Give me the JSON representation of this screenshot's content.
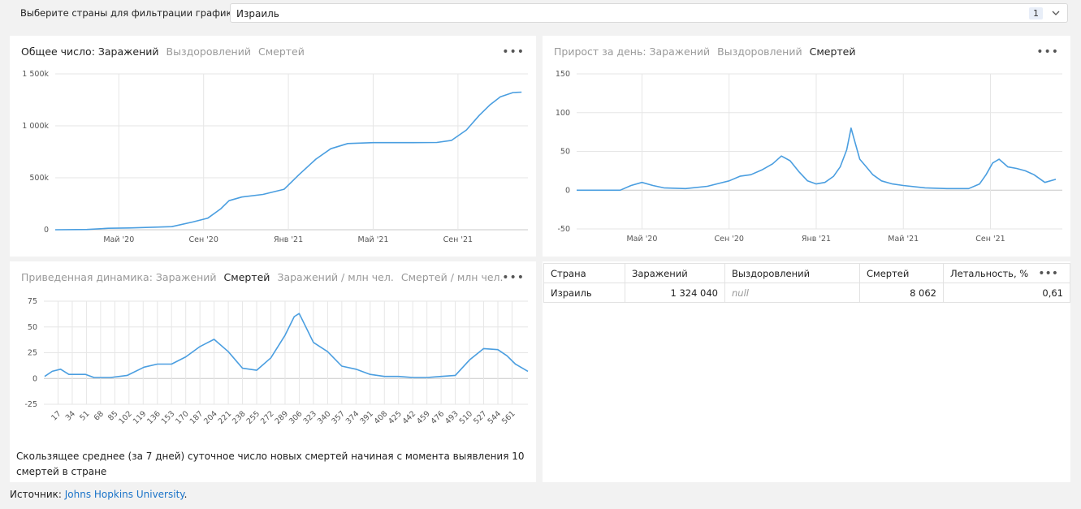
{
  "filter": {
    "label": "Выберите страны для фильтрации графиков:",
    "value": "Израиль",
    "count": "1"
  },
  "panel_total": {
    "tabs": [
      {
        "label": "Общее число: Заражений",
        "active": true
      },
      {
        "label": "Выздоровлений",
        "active": false
      },
      {
        "label": "Смертей",
        "active": false
      }
    ],
    "more": "•••"
  },
  "panel_daily": {
    "tabs": [
      {
        "label": "Прирост за день: Заражений",
        "active": false
      },
      {
        "label": "Выздоровлений",
        "active": false
      },
      {
        "label": "Смертей",
        "active": true
      }
    ],
    "more": "•••"
  },
  "panel_normalized": {
    "tabs": [
      {
        "label": "Приведенная динамика: Заражений",
        "active": false
      },
      {
        "label": "Смертей",
        "active": true
      },
      {
        "label": "Заражений / млн чел.",
        "active": false
      },
      {
        "label": "Смертей / млн чел.",
        "active": false
      }
    ],
    "more": "•••",
    "caption": "Скользящее среднее (за 7 дней) суточное число новых смертей начиная с момента выявления 10 смертей в стране"
  },
  "table": {
    "headers": [
      "Страна",
      "Заражений",
      "Выздоровлений",
      "Смертей",
      "Летальность, %"
    ],
    "more": "•••",
    "rows": [
      {
        "country": "Израиль",
        "cases": "1 324 040",
        "recovered": "null",
        "deaths": "8 062",
        "lethality": "0,61"
      }
    ]
  },
  "source": {
    "prefix": "Источник: ",
    "link": "Johns Hopkins University",
    "suffix": "."
  },
  "colors": {
    "line": "#4a9ee0",
    "grid": "#e6e6e6",
    "active_tab": "#222222",
    "inactive_tab": "#999999"
  },
  "chart_data": [
    {
      "type": "line",
      "title": "Общее число: Заражений",
      "x_ticks": [
        "Май '20",
        "Сен '20",
        "Янв '21",
        "Май '21",
        "Сен '21"
      ],
      "y_ticks": [
        "0",
        "500k",
        "1 000k",
        "1 500k"
      ],
      "ylim": [
        0,
        1500000
      ],
      "grid": true,
      "x_unit": "month index (0 = Feb 2020)",
      "series": [
        {
          "points": [
            [
              0,
              0
            ],
            [
              1.5,
              2000
            ],
            [
              2.5,
              14000
            ],
            [
              3.5,
              17000
            ],
            [
              5.5,
              30000
            ],
            [
              6.5,
              75000
            ],
            [
              7.2,
              112000
            ],
            [
              7.8,
              200000
            ],
            [
              8.2,
              280000
            ],
            [
              8.8,
              315000
            ],
            [
              9.8,
              340000
            ],
            [
              10.8,
              390000
            ],
            [
              11.5,
              530000
            ],
            [
              12.3,
              680000
            ],
            [
              13,
              780000
            ],
            [
              13.8,
              830000
            ],
            [
              15,
              838000
            ],
            [
              16.5,
              838000
            ],
            [
              18,
              840000
            ],
            [
              18.7,
              860000
            ],
            [
              19.4,
              960000
            ],
            [
              20,
              1100000
            ],
            [
              20.5,
              1200000
            ],
            [
              21,
              1280000
            ],
            [
              21.6,
              1320000
            ],
            [
              22,
              1324040
            ]
          ]
        }
      ]
    },
    {
      "type": "line",
      "title": "Прирост за день: Смертей",
      "x_ticks": [
        "Май '20",
        "Сен '20",
        "Янв '21",
        "Май '21",
        "Сен '21"
      ],
      "y_ticks": [
        "-50",
        "0",
        "50",
        "100",
        "150"
      ],
      "ylim": [
        -50,
        150
      ],
      "grid": true,
      "x_unit": "month index (0 = Feb 2020)",
      "series": [
        {
          "points": [
            [
              0,
              0
            ],
            [
              2,
              0
            ],
            [
              2.5,
              6
            ],
            [
              3,
              10
            ],
            [
              3.5,
              6
            ],
            [
              4,
              3
            ],
            [
              5,
              2
            ],
            [
              6,
              5
            ],
            [
              7,
              12
            ],
            [
              7.5,
              18
            ],
            [
              8,
              20
            ],
            [
              8.5,
              26
            ],
            [
              9,
              34
            ],
            [
              9.4,
              44
            ],
            [
              9.8,
              38
            ],
            [
              10.2,
              24
            ],
            [
              10.6,
              12
            ],
            [
              11,
              8
            ],
            [
              11.4,
              10
            ],
            [
              11.8,
              18
            ],
            [
              12.1,
              30
            ],
            [
              12.4,
              52
            ],
            [
              12.6,
              80
            ],
            [
              12.8,
              60
            ],
            [
              13,
              40
            ],
            [
              13.3,
              30
            ],
            [
              13.6,
              20
            ],
            [
              14,
              12
            ],
            [
              14.5,
              8
            ],
            [
              15,
              6
            ],
            [
              16,
              3
            ],
            [
              17,
              2
            ],
            [
              18,
              2
            ],
            [
              18.5,
              8
            ],
            [
              18.8,
              20
            ],
            [
              19.1,
              35
            ],
            [
              19.4,
              40
            ],
            [
              19.8,
              30
            ],
            [
              20.2,
              28
            ],
            [
              20.6,
              25
            ],
            [
              21,
              20
            ],
            [
              21.5,
              10
            ],
            [
              22,
              14
            ]
          ]
        }
      ]
    },
    {
      "type": "line",
      "title": "Приведенная динамика: Смертей",
      "x_ticks": [
        "17",
        "34",
        "51",
        "68",
        "85",
        "102",
        "119",
        "136",
        "153",
        "170",
        "187",
        "204",
        "221",
        "238",
        "255",
        "272",
        "289",
        "306",
        "323",
        "340",
        "357",
        "374",
        "391",
        "408",
        "425",
        "442",
        "459",
        "476",
        "493",
        "510",
        "527",
        "544",
        "561"
      ],
      "y_ticks": [
        "-25",
        "0",
        "25",
        "50",
        "75"
      ],
      "ylim": [
        -25,
        75
      ],
      "grid": true,
      "series": [
        {
          "points": [
            [
              1,
              2
            ],
            [
              10,
              7
            ],
            [
              20,
              9
            ],
            [
              30,
              4
            ],
            [
              50,
              4
            ],
            [
              60,
              1
            ],
            [
              80,
              1
            ],
            [
              100,
              3
            ],
            [
              120,
              11
            ],
            [
              136,
              14
            ],
            [
              153,
              14
            ],
            [
              170,
              21
            ],
            [
              187,
              31
            ],
            [
              204,
              38
            ],
            [
              221,
              26
            ],
            [
              238,
              10
            ],
            [
              255,
              8
            ],
            [
              272,
              20
            ],
            [
              289,
              42
            ],
            [
              300,
              60
            ],
            [
              306,
              63
            ],
            [
              323,
              35
            ],
            [
              340,
              26
            ],
            [
              357,
              12
            ],
            [
              374,
              9
            ],
            [
              391,
              4
            ],
            [
              408,
              2
            ],
            [
              425,
              2
            ],
            [
              442,
              1
            ],
            [
              459,
              1
            ],
            [
              476,
              2
            ],
            [
              493,
              3
            ],
            [
              510,
              18
            ],
            [
              527,
              29
            ],
            [
              544,
              28
            ],
            [
              555,
              22
            ],
            [
              565,
              14
            ],
            [
              580,
              7
            ]
          ]
        }
      ]
    }
  ]
}
